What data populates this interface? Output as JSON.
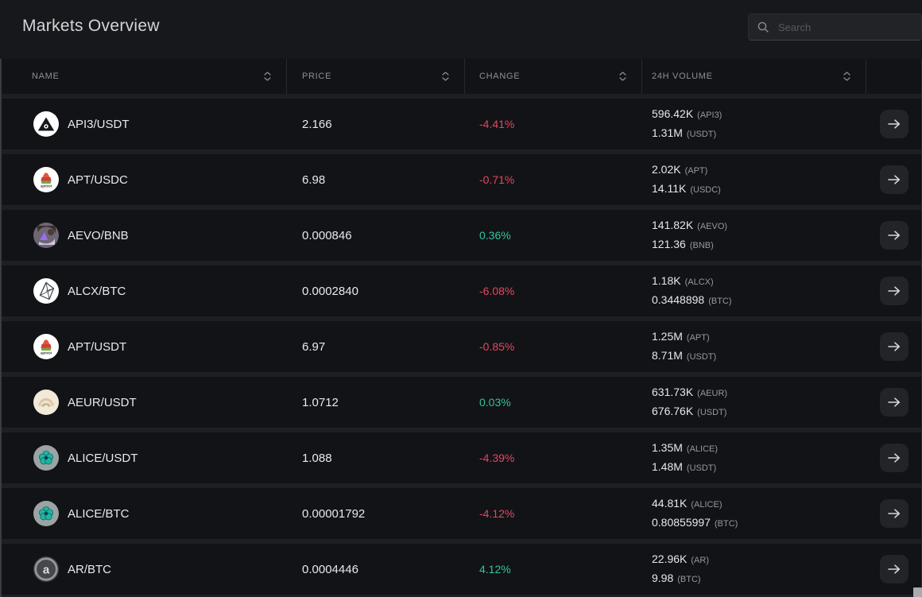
{
  "app": {
    "title": "Markets Overview"
  },
  "search": {
    "placeholder": "Search",
    "value": "",
    "icon": "search-icon"
  },
  "colors": {
    "positive": "#35c2a0",
    "negative": "#e2475f"
  },
  "table": {
    "columns": [
      {
        "label": "NAME",
        "sortable": true
      },
      {
        "label": "PRICE",
        "sortable": true
      },
      {
        "label": "CHANGE",
        "sortable": true
      },
      {
        "label": "24H VOLUME",
        "sortable": true
      },
      {
        "label": "",
        "sortable": false
      }
    ],
    "row_action_icon": "arrow-right-icon",
    "rows": [
      {
        "pair": "API3/USDT",
        "icon_id": "api3",
        "icon_name": "api3-logo-icon",
        "price": "2.166",
        "change": "-4.41%",
        "direction": "down",
        "volume_base": "596.42K",
        "volume_base_unit": "(API3)",
        "volume_quote": "1.31M",
        "volume_quote_unit": "(USDT)"
      },
      {
        "pair": "APT/USDC",
        "icon_id": "apt",
        "icon_name": "apricot-logo-icon",
        "price": "6.98",
        "change": "-0.71%",
        "direction": "down",
        "volume_base": "2.02K",
        "volume_base_unit": "(APT)",
        "volume_quote": "14.11K",
        "volume_quote_unit": "(USDC)"
      },
      {
        "pair": "AEVO/BNB",
        "icon_id": "aevo",
        "icon_name": "aevo-logo-icon",
        "price": "0.000846",
        "change": "0.36%",
        "direction": "up",
        "volume_base": "141.82K",
        "volume_base_unit": "(AEVO)",
        "volume_quote": "121.36",
        "volume_quote_unit": "(BNB)"
      },
      {
        "pair": "ALCX/BTC",
        "icon_id": "alcx",
        "icon_name": "alchemix-logo-icon",
        "price": "0.0002840",
        "change": "-6.08%",
        "direction": "down",
        "volume_base": "1.18K",
        "volume_base_unit": "(ALCX)",
        "volume_quote": "0.3448898",
        "volume_quote_unit": "(BTC)"
      },
      {
        "pair": "APT/USDT",
        "icon_id": "apt",
        "icon_name": "apricot-logo-icon",
        "price": "6.97",
        "change": "-0.85%",
        "direction": "down",
        "volume_base": "1.25M",
        "volume_base_unit": "(APT)",
        "volume_quote": "8.71M",
        "volume_quote_unit": "(USDT)"
      },
      {
        "pair": "AEUR/USDT",
        "icon_id": "aeur",
        "icon_name": "aeur-logo-icon",
        "price": "1.0712",
        "change": "0.03%",
        "direction": "up",
        "volume_base": "631.73K",
        "volume_base_unit": "(AEUR)",
        "volume_quote": "676.76K",
        "volume_quote_unit": "(USDT)"
      },
      {
        "pair": "ALICE/USDT",
        "icon_id": "alice",
        "icon_name": "alice-logo-icon",
        "price": "1.088",
        "change": "-4.39%",
        "direction": "down",
        "volume_base": "1.35M",
        "volume_base_unit": "(ALICE)",
        "volume_quote": "1.48M",
        "volume_quote_unit": "(USDT)"
      },
      {
        "pair": "ALICE/BTC",
        "icon_id": "alice",
        "icon_name": "alice-logo-icon",
        "price": "0.00001792",
        "change": "-4.12%",
        "direction": "down",
        "volume_base": "44.81K",
        "volume_base_unit": "(ALICE)",
        "volume_quote": "0.80855997",
        "volume_quote_unit": "(BTC)"
      },
      {
        "pair": "AR/BTC",
        "icon_id": "ar",
        "icon_name": "arweave-logo-icon",
        "price": "0.0004446",
        "change": "4.12%",
        "direction": "up",
        "volume_base": "22.96K",
        "volume_base_unit": "(AR)",
        "volume_quote": "9.98",
        "volume_quote_unit": "(BTC)"
      }
    ]
  }
}
